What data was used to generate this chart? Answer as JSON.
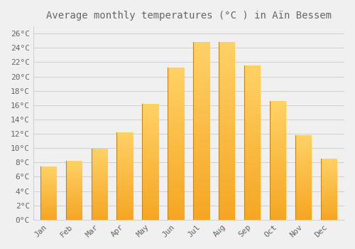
{
  "title": "Average monthly temperatures (°C ) in Aïn Bessem",
  "months": [
    "Jan",
    "Feb",
    "Mar",
    "Apr",
    "May",
    "Jun",
    "Jul",
    "Aug",
    "Sep",
    "Oct",
    "Nov",
    "Dec"
  ],
  "values": [
    7.4,
    8.2,
    9.9,
    12.2,
    16.2,
    21.2,
    24.8,
    24.8,
    21.5,
    16.6,
    11.8,
    8.5
  ],
  "bar_color_bottom": "#F5A623",
  "bar_color_top": "#FFD166",
  "bar_edge_color": "#C8860A",
  "background_color": "#f0f0f0",
  "grid_color": "#d0d0d0",
  "ylim": [
    0,
    27
  ],
  "yticks": [
    0,
    2,
    4,
    6,
    8,
    10,
    12,
    14,
    16,
    18,
    20,
    22,
    24,
    26
  ],
  "ytick_labels": [
    "0°C",
    "2°C",
    "4°C",
    "6°C",
    "8°C",
    "10°C",
    "12°C",
    "14°C",
    "16°C",
    "18°C",
    "20°C",
    "22°C",
    "24°C",
    "26°C"
  ],
  "title_fontsize": 10,
  "tick_fontsize": 8,
  "font_color": "#666666",
  "bar_width": 0.65,
  "n_gradient_steps": 100
}
